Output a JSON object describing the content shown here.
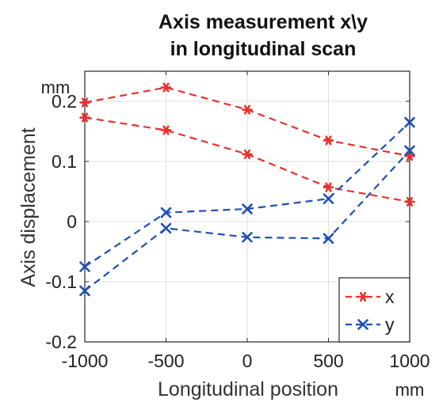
{
  "chart_data": {
    "type": "line",
    "title_line1": "Axis measurement x\\y",
    "title_line2": "in longitudinal scan",
    "xlabel": "Longitudinal position",
    "ylabel": "Axis displacement",
    "x_unit": "mm",
    "y_unit": "mm",
    "xlim": [
      -1000,
      1000
    ],
    "ylim": [
      -0.2,
      0.25
    ],
    "xticks": [
      -1000,
      -500,
      0,
      500,
      1000
    ],
    "xtick_labels": [
      "-1000",
      "-500",
      "0",
      "500",
      "1000"
    ],
    "yticks": [
      -0.2,
      -0.1,
      0,
      0.1,
      0.2
    ],
    "ytick_labels": [
      "-0.2",
      "-0.1",
      "0",
      "0.1",
      "0.2"
    ],
    "grid": true,
    "legend_position": "bottom-right",
    "x": [
      -1000,
      -500,
      0,
      500,
      1000
    ],
    "series": [
      {
        "name": "x",
        "marker": "asterisk",
        "color": "#e8312f",
        "values": [
          0.198,
          0.223,
          0.186,
          0.135,
          0.109
        ]
      },
      {
        "name": "x",
        "marker": "asterisk",
        "color": "#e8312f",
        "values": [
          0.173,
          0.152,
          0.112,
          0.057,
          0.033
        ]
      },
      {
        "name": "y",
        "marker": "cross",
        "color": "#1f4fb5",
        "values": [
          -0.075,
          0.015,
          0.021,
          0.038,
          0.165
        ]
      },
      {
        "name": "y",
        "marker": "cross",
        "color": "#1f4fb5",
        "values": [
          -0.115,
          -0.011,
          -0.026,
          -0.028,
          0.118
        ]
      }
    ],
    "legend": [
      {
        "label": "x",
        "marker": "asterisk",
        "color": "#e8312f"
      },
      {
        "label": "y",
        "marker": "cross",
        "color": "#1f4fb5"
      }
    ]
  }
}
